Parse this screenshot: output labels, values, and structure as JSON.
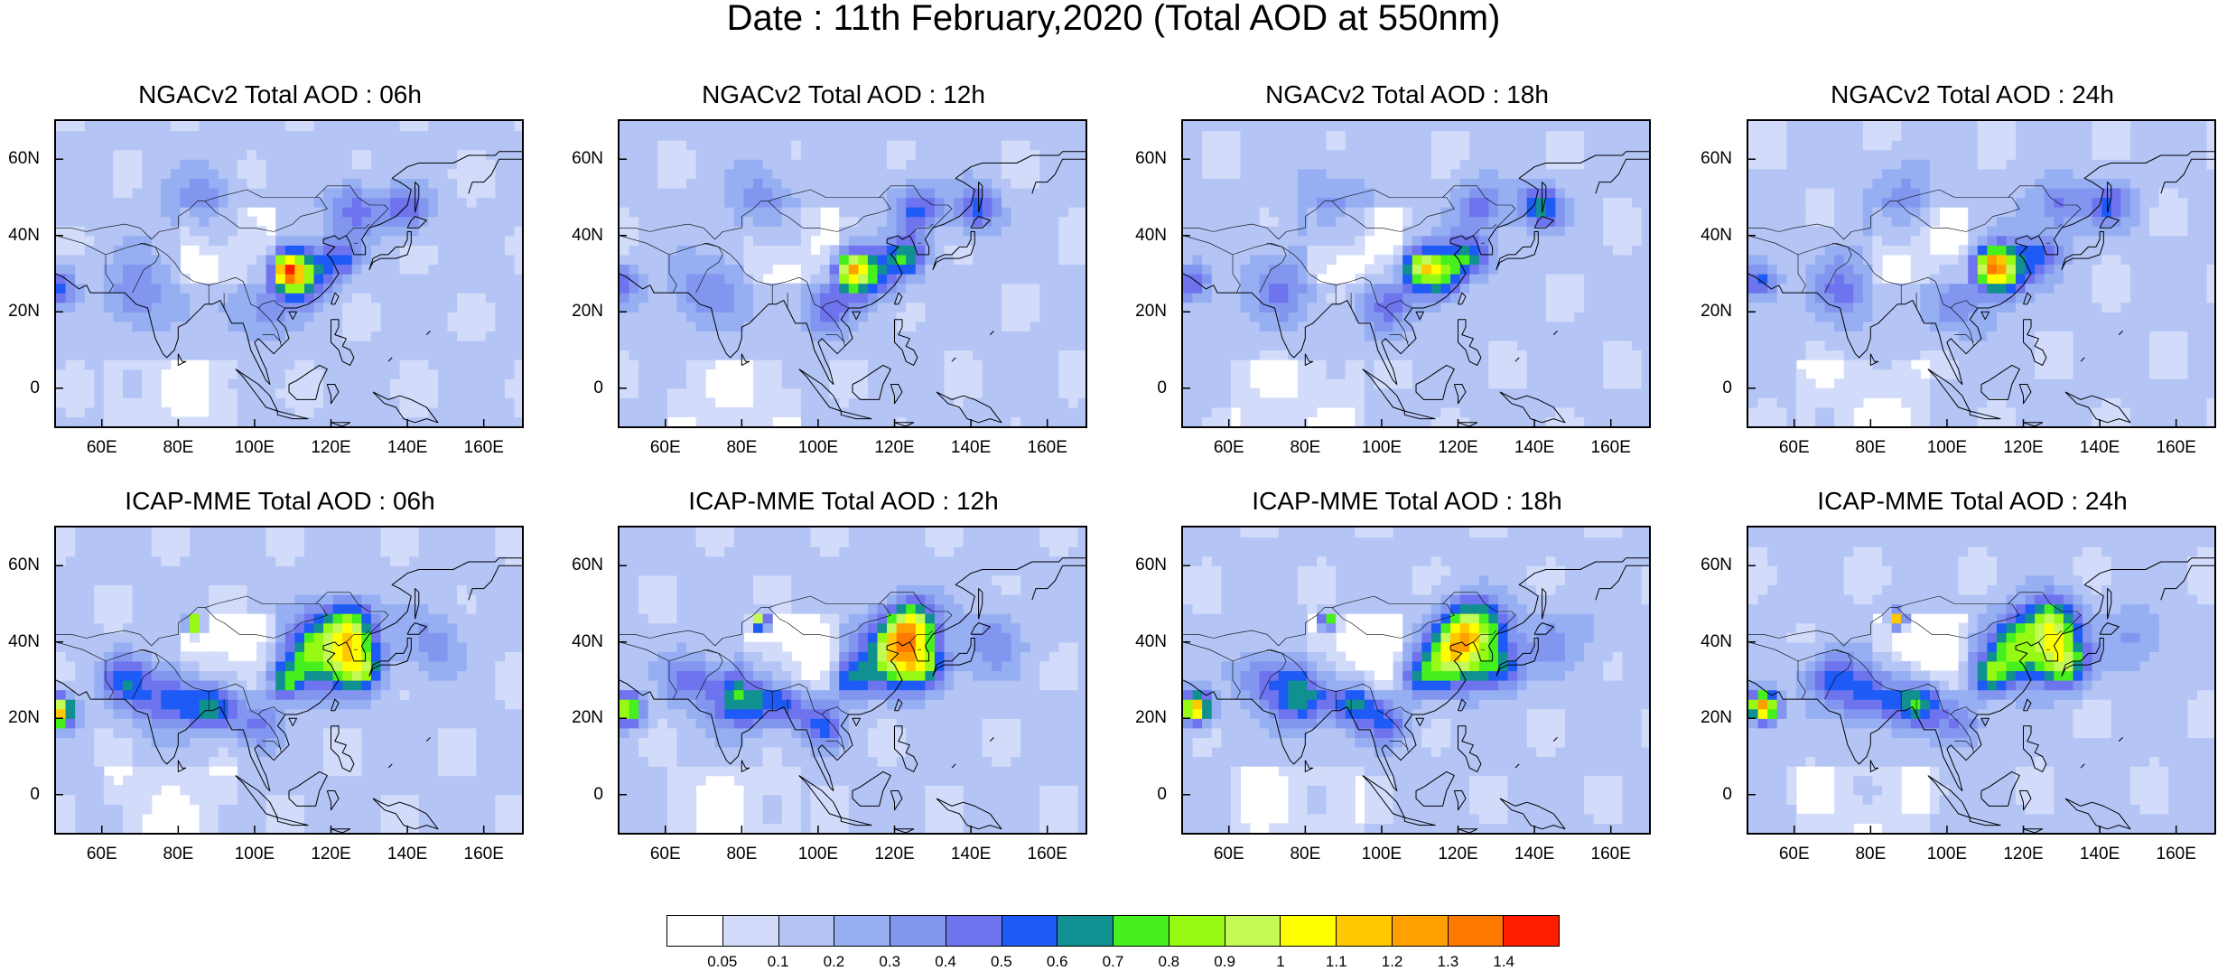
{
  "title": "Date : 11th February,2020 (Total AOD at 550nm)",
  "y_ticks": [
    "60N",
    "40N",
    "20N",
    "0"
  ],
  "x_ticks": [
    "60E",
    "80E",
    "100E",
    "120E",
    "140E",
    "160E"
  ],
  "panels": [
    {
      "title": "NGACv2 Total AOD : 06h",
      "model": "NGACv2",
      "hour": "06h"
    },
    {
      "title": "NGACv2 Total AOD : 12h",
      "model": "NGACv2",
      "hour": "12h"
    },
    {
      "title": "NGACv2 Total AOD : 18h",
      "model": "NGACv2",
      "hour": "18h"
    },
    {
      "title": "NGACv2 Total AOD : 24h",
      "model": "NGACv2",
      "hour": "24h"
    },
    {
      "title": "ICAP-MME Total AOD : 06h",
      "model": "ICAP-MME",
      "hour": "06h"
    },
    {
      "title": "ICAP-MME Total AOD : 12h",
      "model": "ICAP-MME",
      "hour": "12h"
    },
    {
      "title": "ICAP-MME Total AOD : 18h",
      "model": "ICAP-MME",
      "hour": "18h"
    },
    {
      "title": "ICAP-MME Total AOD : 24h",
      "model": "ICAP-MME",
      "hour": "24h"
    }
  ],
  "colorbar": {
    "labels": [
      "0.05",
      "0.1",
      "0.2",
      "0.3",
      "0.4",
      "0.5",
      "0.6",
      "0.7",
      "0.8",
      "0.9",
      "1",
      "1.1",
      "1.2",
      "1.3",
      "1.4"
    ],
    "colors": [
      "#ffffff",
      "#d2dcfa",
      "#b4c4f5",
      "#96aef2",
      "#8296f0",
      "#6e73ee",
      "#1e5af5",
      "#109090",
      "#46f01e",
      "#96fa14",
      "#c3fa55",
      "#ffff00",
      "#ffc800",
      "#ffa000",
      "#ff7800",
      "#ff1e00"
    ]
  },
  "map": {
    "lon_range": [
      48,
      170
    ],
    "lat_range": [
      -10,
      70
    ]
  }
}
